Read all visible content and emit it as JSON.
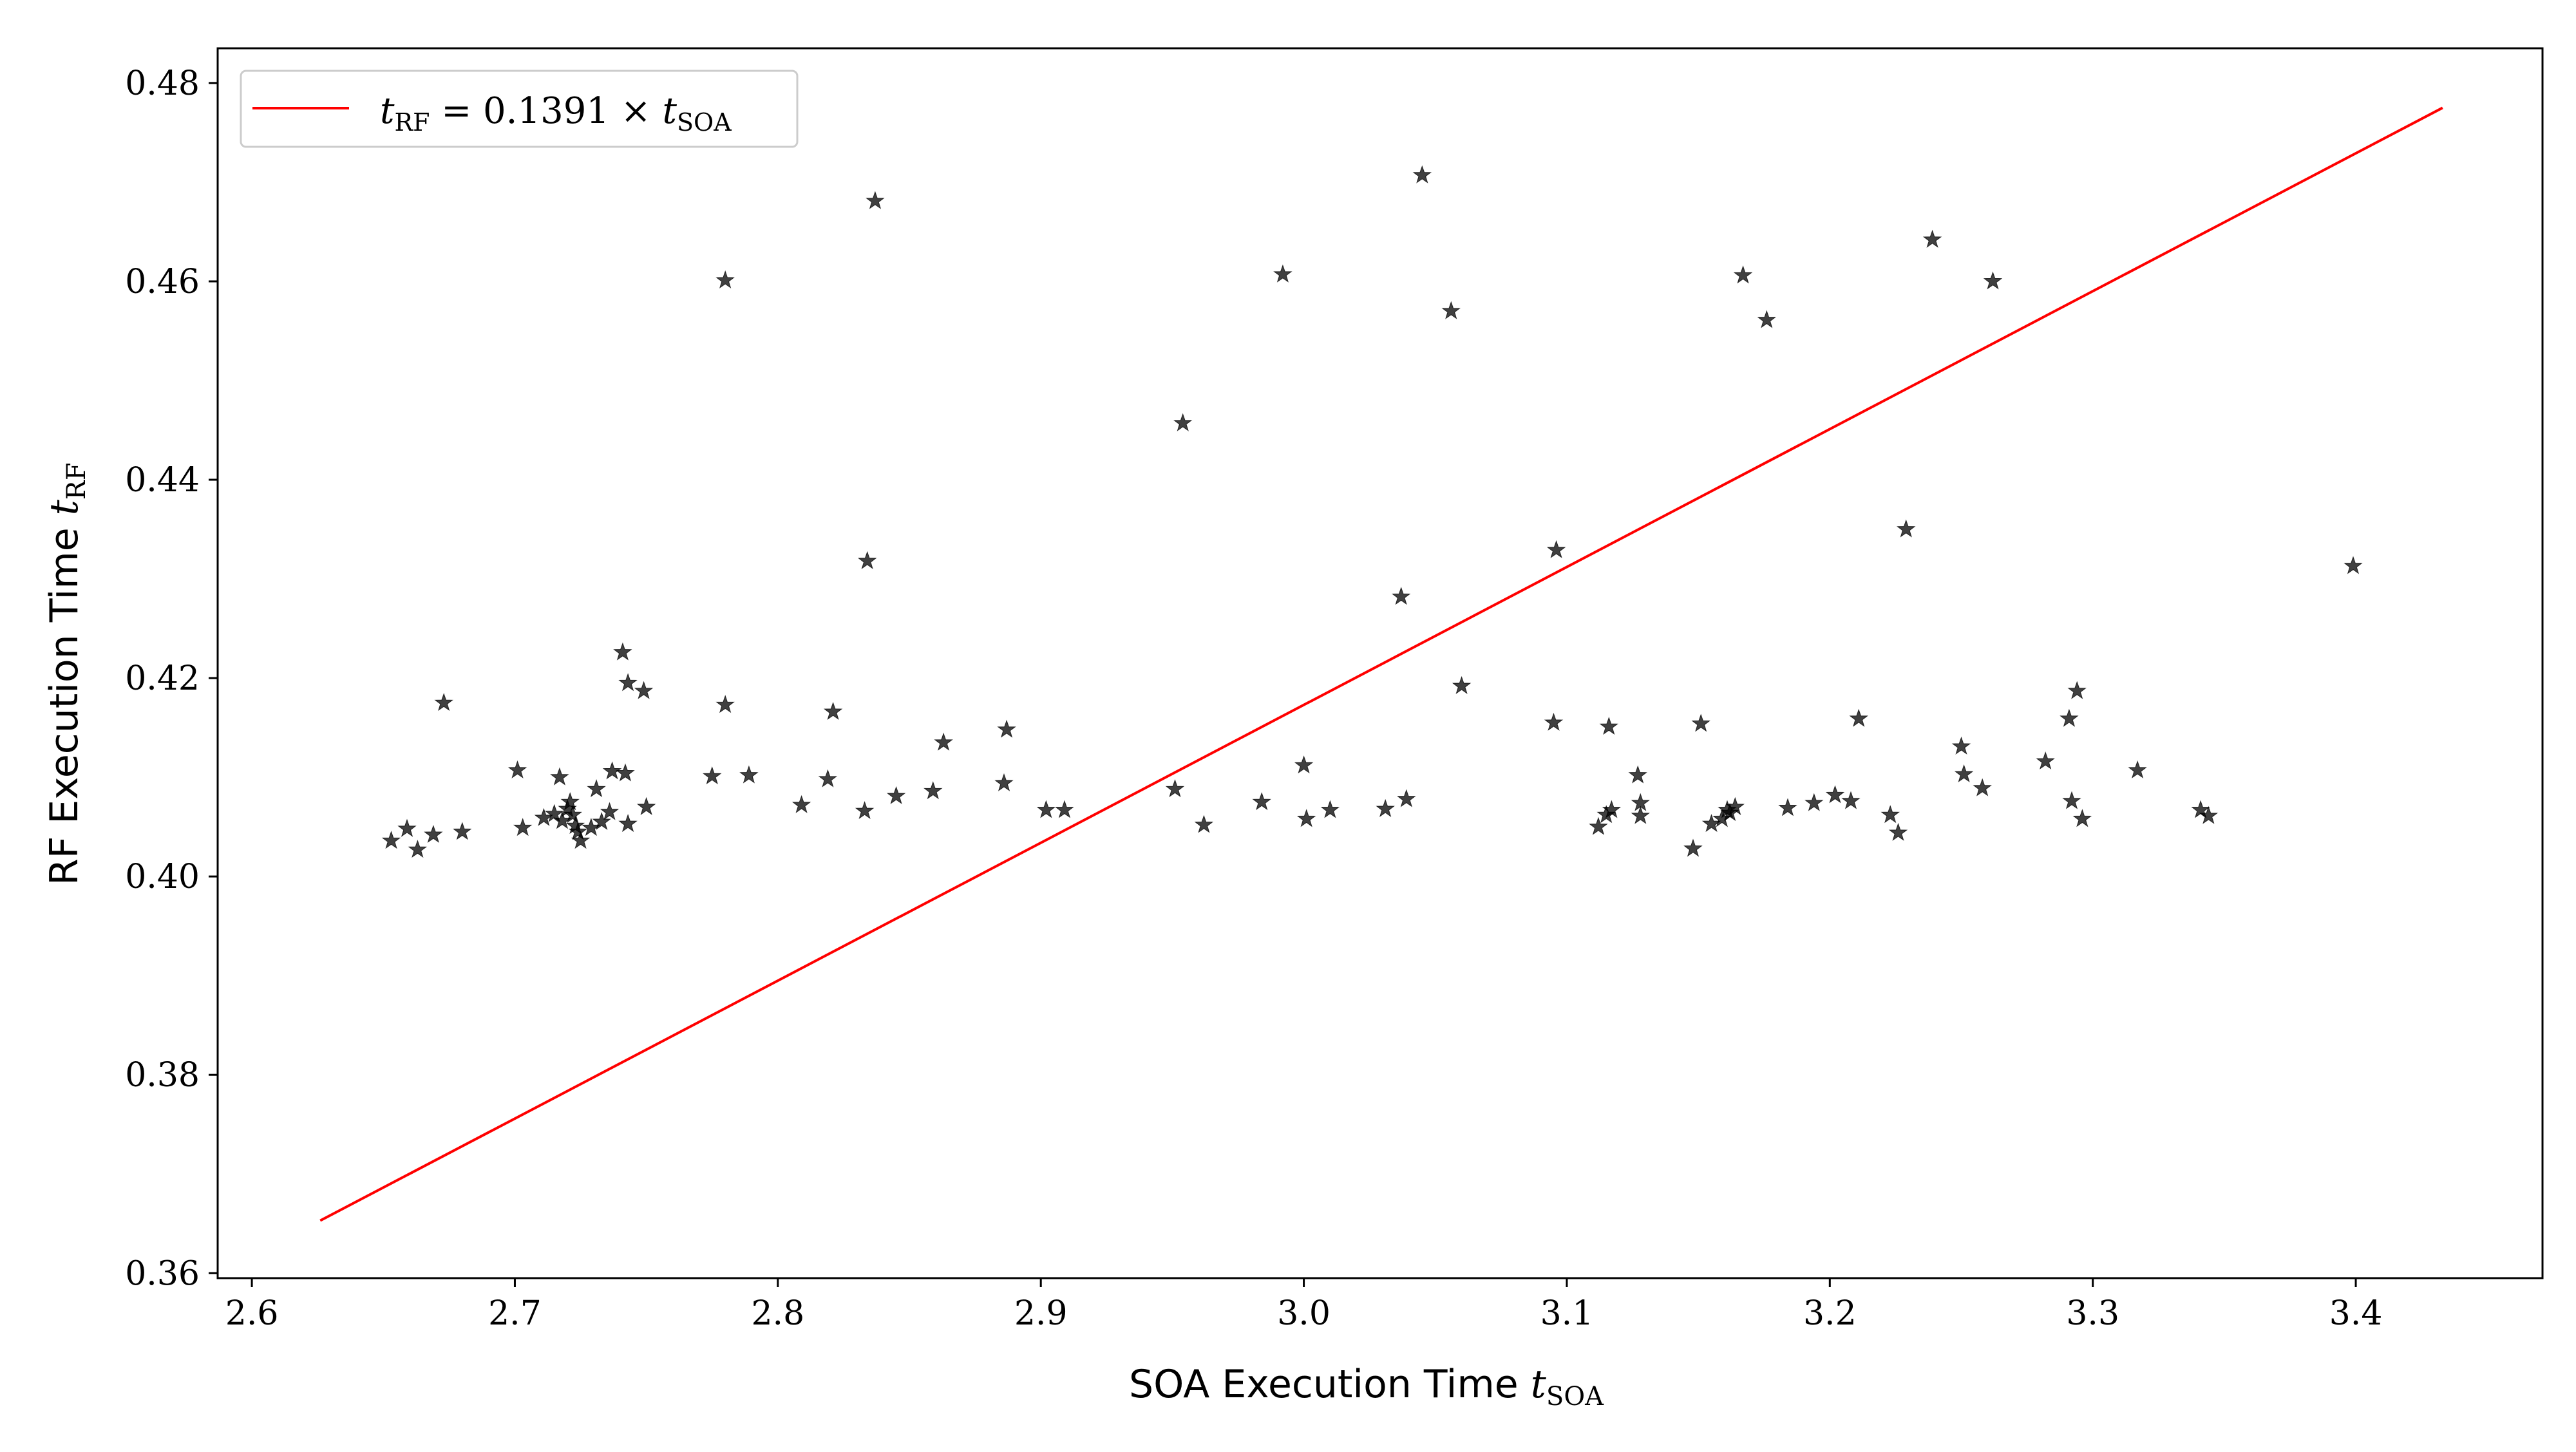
{
  "chart_data": {
    "type": "scatter",
    "title": "",
    "xlabel": "SOA Execution Time t_SOA",
    "ylabel": "RF Execution Time t_RF",
    "xlim": [
      2.587,
      3.471
    ],
    "ylim": [
      0.3595,
      0.4835
    ],
    "xticks": [
      2.6,
      2.7,
      2.8,
      2.9,
      3.0,
      3.1,
      3.2,
      3.3,
      3.4
    ],
    "xtick_labels": [
      "2.6",
      "2.7",
      "2.8",
      "2.9",
      "3.0",
      "3.1",
      "3.2",
      "3.3",
      "3.4"
    ],
    "yticks": [
      0.36,
      0.38,
      0.4,
      0.42,
      0.44,
      0.46,
      0.48
    ],
    "ytick_labels": [
      "0.36",
      "0.38",
      "0.40",
      "0.42",
      "0.44",
      "0.46",
      "0.48"
    ],
    "grid": false,
    "legend": {
      "position": "top-left",
      "entries": [
        {
          "label": "t_RF = 0.1391 × t_SOA",
          "color": "#ff0000",
          "kind": "line"
        }
      ]
    },
    "series": [
      {
        "name": "t_RF = 0.1391 × t_SOA",
        "kind": "line",
        "color": "#ff0000",
        "x": [
          2.626,
          3.433
        ],
        "y": [
          0.3653,
          0.4775
        ]
      },
      {
        "kind": "scatter",
        "marker": "star",
        "color": "#000000",
        "opacity": 0.75,
        "points": [
          [
            2.653,
            0.4036
          ],
          [
            2.659,
            0.4048
          ],
          [
            2.663,
            0.4027
          ],
          [
            2.669,
            0.4042
          ],
          [
            2.673,
            0.4175
          ],
          [
            2.68,
            0.4045
          ],
          [
            2.701,
            0.4107
          ],
          [
            2.703,
            0.4049
          ],
          [
            2.711,
            0.4059
          ],
          [
            2.715,
            0.4063
          ],
          [
            2.717,
            0.41
          ],
          [
            2.718,
            0.4056
          ],
          [
            2.72,
            0.4068
          ],
          [
            2.721,
            0.4075
          ],
          [
            2.722,
            0.4062
          ],
          [
            2.723,
            0.4051
          ],
          [
            2.724,
            0.4045
          ],
          [
            2.725,
            0.4036
          ],
          [
            2.729,
            0.4049
          ],
          [
            2.731,
            0.4088
          ],
          [
            2.733,
            0.4055
          ],
          [
            2.736,
            0.4065
          ],
          [
            2.737,
            0.4106
          ],
          [
            2.741,
            0.4226
          ],
          [
            2.742,
            0.4104
          ],
          [
            2.743,
            0.4195
          ],
          [
            2.743,
            0.4053
          ],
          [
            2.749,
            0.4187
          ],
          [
            2.75,
            0.407
          ],
          [
            2.775,
            0.4101
          ],
          [
            2.78,
            0.4601
          ],
          [
            2.78,
            0.4173
          ],
          [
            2.789,
            0.4102
          ],
          [
            2.809,
            0.4072
          ],
          [
            2.819,
            0.4098
          ],
          [
            2.821,
            0.4166
          ],
          [
            2.833,
            0.4066
          ],
          [
            2.834,
            0.4318
          ],
          [
            2.837,
            0.4681
          ],
          [
            2.845,
            0.4081
          ],
          [
            2.859,
            0.4086
          ],
          [
            2.863,
            0.4135
          ],
          [
            2.886,
            0.4094
          ],
          [
            2.887,
            0.4148
          ],
          [
            2.902,
            0.4067
          ],
          [
            2.909,
            0.4067
          ],
          [
            2.951,
            0.4088
          ],
          [
            2.954,
            0.4457
          ],
          [
            2.962,
            0.4052
          ],
          [
            2.984,
            0.4075
          ],
          [
            2.992,
            0.4607
          ],
          [
            3.0,
            0.4112
          ],
          [
            3.001,
            0.4058
          ],
          [
            3.01,
            0.4067
          ],
          [
            3.031,
            0.4068
          ],
          [
            3.037,
            0.4282
          ],
          [
            3.039,
            0.4078
          ],
          [
            3.045,
            0.4707
          ],
          [
            3.056,
            0.457
          ],
          [
            3.06,
            0.4192
          ],
          [
            3.095,
            0.4155
          ],
          [
            3.096,
            0.4329
          ],
          [
            3.112,
            0.405
          ],
          [
            3.115,
            0.4062
          ],
          [
            3.116,
            0.4151
          ],
          [
            3.117,
            0.4067
          ],
          [
            3.127,
            0.4102
          ],
          [
            3.128,
            0.4074
          ],
          [
            3.128,
            0.4061
          ],
          [
            3.148,
            0.4028
          ],
          [
            3.151,
            0.4154
          ],
          [
            3.155,
            0.4053
          ],
          [
            3.159,
            0.4058
          ],
          [
            3.161,
            0.4067
          ],
          [
            3.162,
            0.4064
          ],
          [
            3.164,
            0.407
          ],
          [
            3.167,
            0.4606
          ],
          [
            3.176,
            0.4561
          ],
          [
            3.184,
            0.4069
          ],
          [
            3.194,
            0.4074
          ],
          [
            3.202,
            0.4082
          ],
          [
            3.208,
            0.4076
          ],
          [
            3.211,
            0.4159
          ],
          [
            3.223,
            0.4062
          ],
          [
            3.226,
            0.4044
          ],
          [
            3.229,
            0.435
          ],
          [
            3.239,
            0.4642
          ],
          [
            3.25,
            0.4131
          ],
          [
            3.251,
            0.4103
          ],
          [
            3.258,
            0.4089
          ],
          [
            3.262,
            0.46
          ],
          [
            3.282,
            0.4116
          ],
          [
            3.291,
            0.4159
          ],
          [
            3.292,
            0.4076
          ],
          [
            3.294,
            0.4187
          ],
          [
            3.296,
            0.4058
          ],
          [
            3.317,
            0.4107
          ],
          [
            3.341,
            0.4067
          ],
          [
            3.344,
            0.4061
          ],
          [
            3.399,
            0.4313
          ]
        ]
      }
    ]
  }
}
